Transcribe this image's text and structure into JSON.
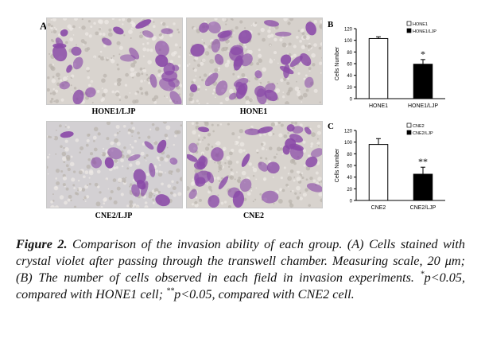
{
  "panels": {
    "a_label": "A",
    "b_label": "B",
    "c_label": "C",
    "photos": [
      {
        "id": "top-left",
        "label": "HONE1/LJP",
        "density": "medium",
        "bg": "#d9d4cf"
      },
      {
        "id": "top-right",
        "label": "HONE1",
        "density": "high",
        "bg": "#d6d1cc"
      },
      {
        "id": "bottom-left",
        "label": "CNE2/LJP",
        "density": "low",
        "bg": "#d3d0d3"
      },
      {
        "id": "bottom-right",
        "label": "CNE2",
        "density": "high",
        "bg": "#d8d3ce"
      }
    ],
    "stain_color": "#8a4aa8"
  },
  "chart_data": [
    {
      "type": "bar",
      "panel": "B",
      "categories": [
        "HONE1",
        "HONE1/LJP"
      ],
      "values": [
        103,
        59
      ],
      "errors": [
        3,
        8
      ],
      "bar_fill": [
        "#ffffff",
        "#000000"
      ],
      "legend": [
        "HONE1",
        "HONE1/LJP"
      ],
      "ylabel": "Cells Number",
      "ylim": [
        0,
        120
      ],
      "yticks": [
        0,
        20,
        40,
        60,
        80,
        100,
        120
      ],
      "annotation": "*",
      "grid": false
    },
    {
      "type": "bar",
      "panel": "C",
      "categories": [
        "CNE2",
        "CNE2/LJP"
      ],
      "values": [
        96,
        45
      ],
      "errors": [
        10,
        12
      ],
      "bar_fill": [
        "#ffffff",
        "#000000"
      ],
      "legend": [
        "CNE2",
        "CNE2/LJP"
      ],
      "ylabel": "Cells Number",
      "ylim": [
        0,
        120
      ],
      "yticks": [
        0,
        20,
        40,
        60,
        80,
        100,
        120
      ],
      "annotation": "**",
      "grid": false
    }
  ],
  "caption": {
    "label": "Figure 2.",
    "part1": " Comparison of the invasion ability of each group. (A) Cells stained with crystal violet after passing through the transwell chamber. Measuring scale, 20 μm; (B) The number of cells observed in each field in invasion experiments. ",
    "sup1": "*",
    "part2": "p<0.05, compared with HONE1 cell; ",
    "sup2": "**",
    "part3": "p<0.05, compared with CNE2 cell."
  }
}
